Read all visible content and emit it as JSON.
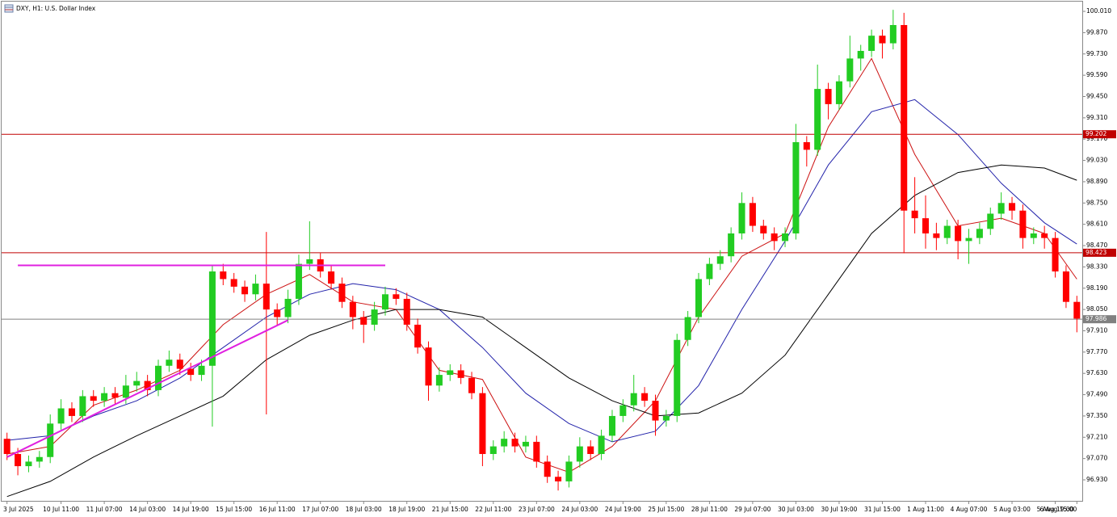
{
  "chart_data": {
    "type": "candlestick",
    "title": "DXY, H1:  U.S. Dollar Index",
    "categories": [
      "3 Jul 2025",
      null,
      null,
      null,
      null,
      "10 Jul 11:00",
      null,
      null,
      null,
      "11 Jul 07:00",
      null,
      null,
      null,
      "14 Jul 03:00",
      null,
      null,
      null,
      "14 Jul 19:00",
      null,
      null,
      null,
      "15 Jul 15:00",
      null,
      null,
      null,
      "16 Jul 11:00",
      null,
      null,
      null,
      "17 Jul 07:00",
      null,
      null,
      null,
      "18 Jul 03:00",
      null,
      null,
      null,
      "18 Jul 19:00",
      null,
      null,
      null,
      "21 Jul 15:00",
      null,
      null,
      null,
      "22 Jul 11:00",
      null,
      null,
      null,
      "23 Jul 07:00",
      null,
      null,
      null,
      "24 Jul 03:00",
      null,
      null,
      null,
      "24 Jul 19:00",
      null,
      null,
      null,
      "25 Jul 15:00",
      null,
      null,
      null,
      "28 Jul 11:00",
      null,
      null,
      null,
      "29 Jul 07:00",
      null,
      null,
      null,
      "30 Jul 03:00",
      null,
      null,
      null,
      "30 Jul 19:00",
      null,
      null,
      null,
      "31 Jul 15:00",
      null,
      null,
      null,
      "1 Aug 11:00",
      null,
      null,
      null,
      "4 Aug 07:00",
      null,
      null,
      null,
      "5 Aug 03:00",
      null,
      null,
      null,
      "5 Aug 19:00",
      null,
      "6 Aug 15:00"
    ],
    "open": [
      97.2,
      97.1,
      97.02,
      97.05,
      97.08,
      97.3,
      97.4,
      97.35,
      97.48,
      97.45,
      97.5,
      97.47,
      97.55,
      97.58,
      97.52,
      97.68,
      97.72,
      97.66,
      97.62,
      97.68,
      98.3,
      98.25,
      98.2,
      98.15,
      98.22,
      98.05,
      98.0,
      98.12,
      98.35,
      98.38,
      98.3,
      98.22,
      98.1,
      98.0,
      97.95,
      98.05,
      98.15,
      98.12,
      97.95,
      97.8,
      97.55,
      97.62,
      97.65,
      97.6,
      97.5,
      97.1,
      97.15,
      97.2,
      97.15,
      97.18,
      97.05,
      96.95,
      96.92,
      97.05,
      97.15,
      97.1,
      97.22,
      97.35,
      97.42,
      97.5,
      97.45,
      97.32,
      97.35,
      97.85,
      98.0,
      98.25,
      98.35,
      98.4,
      98.55,
      98.75,
      98.6,
      98.55,
      98.5,
      98.55,
      99.15,
      99.1,
      99.5,
      99.4,
      99.55,
      99.7,
      99.75,
      99.85,
      99.8,
      99.92,
      98.7,
      98.65,
      98.55,
      98.52,
      98.6,
      98.5,
      98.52,
      98.58,
      98.68,
      98.75,
      98.7,
      98.52,
      98.55,
      98.52,
      98.3,
      98.1
    ],
    "high": [
      97.24,
      97.14,
      97.09,
      97.12,
      97.36,
      97.46,
      97.44,
      97.52,
      97.52,
      97.54,
      97.54,
      97.62,
      97.64,
      97.62,
      97.72,
      97.78,
      97.76,
      97.7,
      97.72,
      98.34,
      98.35,
      98.29,
      98.24,
      98.28,
      98.56,
      98.09,
      98.18,
      98.41,
      98.63,
      98.42,
      98.34,
      98.26,
      98.14,
      98.04,
      98.1,
      98.2,
      98.19,
      98.16,
      97.99,
      97.84,
      97.67,
      97.69,
      97.69,
      97.64,
      97.54,
      97.19,
      97.25,
      97.24,
      97.22,
      97.22,
      97.09,
      96.99,
      97.09,
      97.21,
      97.19,
      97.26,
      97.39,
      97.46,
      97.62,
      97.54,
      97.49,
      97.39,
      97.89,
      98.04,
      98.29,
      98.39,
      98.44,
      98.59,
      98.82,
      98.79,
      98.64,
      98.59,
      98.59,
      99.27,
      99.19,
      99.66,
      99.54,
      99.59,
      99.85,
      99.79,
      99.89,
      99.89,
      100.02,
      100.0,
      98.92,
      98.8,
      98.62,
      98.64,
      98.64,
      98.58,
      98.62,
      98.72,
      98.82,
      98.79,
      98.74,
      98.59,
      98.6,
      98.56,
      98.34,
      98.14
    ],
    "low": [
      97.06,
      96.96,
      96.98,
      97.01,
      97.04,
      97.26,
      97.31,
      97.31,
      97.41,
      97.41,
      97.43,
      97.43,
      97.51,
      97.48,
      97.48,
      97.64,
      97.62,
      97.58,
      97.58,
      97.28,
      98.21,
      98.16,
      98.1,
      98.11,
      97.36,
      97.95,
      97.96,
      98.08,
      98.31,
      98.26,
      98.18,
      98.06,
      97.92,
      97.83,
      97.91,
      98.01,
      98.08,
      97.91,
      97.76,
      97.45,
      97.51,
      97.58,
      97.56,
      97.46,
      97.02,
      97.06,
      97.11,
      97.11,
      97.11,
      97.01,
      96.91,
      96.86,
      96.88,
      97.01,
      97.06,
      97.06,
      97.18,
      97.31,
      97.38,
      97.41,
      97.22,
      97.28,
      97.31,
      97.81,
      97.96,
      98.21,
      98.31,
      98.36,
      98.51,
      98.56,
      98.51,
      98.44,
      98.46,
      98.51,
      98.99,
      99.06,
      99.3,
      99.36,
      99.51,
      99.62,
      99.71,
      99.7,
      99.76,
      98.42,
      98.55,
      98.45,
      98.44,
      98.48,
      98.38,
      98.35,
      98.48,
      98.54,
      98.64,
      98.64,
      98.45,
      98.48,
      98.45,
      98.26,
      98.06,
      97.9
    ],
    "close": [
      97.1,
      97.02,
      97.05,
      97.08,
      97.3,
      97.4,
      97.35,
      97.48,
      97.45,
      97.5,
      97.47,
      97.55,
      97.58,
      97.52,
      97.68,
      97.72,
      97.66,
      97.62,
      97.68,
      98.3,
      98.25,
      98.2,
      98.15,
      98.22,
      98.05,
      98.0,
      98.12,
      98.35,
      98.38,
      98.3,
      98.22,
      98.1,
      98.0,
      97.95,
      98.05,
      98.15,
      98.12,
      97.95,
      97.8,
      97.55,
      97.62,
      97.65,
      97.6,
      97.5,
      97.1,
      97.15,
      97.2,
      97.15,
      97.18,
      97.05,
      96.95,
      96.92,
      97.05,
      97.15,
      97.1,
      97.22,
      97.35,
      97.42,
      97.5,
      97.45,
      97.32,
      97.35,
      97.85,
      98.0,
      98.25,
      98.35,
      98.4,
      98.55,
      98.75,
      98.6,
      98.55,
      98.5,
      98.55,
      99.15,
      99.1,
      99.5,
      99.4,
      99.55,
      99.7,
      99.75,
      99.85,
      99.8,
      99.92,
      98.7,
      98.65,
      98.55,
      98.52,
      98.6,
      98.5,
      98.52,
      98.58,
      98.68,
      98.75,
      98.7,
      98.52,
      98.55,
      98.52,
      98.3,
      98.1,
      97.99
    ],
    "up_color": "#22cc22",
    "down_color": "#ff0000",
    "moving_averages": [
      {
        "color": "#cc1111",
        "x": [
          0,
          4,
          8,
          12,
          16,
          20,
          24,
          28,
          32,
          36,
          40,
          44,
          48,
          52,
          56,
          60,
          64,
          68,
          72,
          76,
          80,
          84,
          88,
          92,
          96,
          99
        ],
        "values": [
          97.1,
          97.15,
          97.42,
          97.52,
          97.65,
          97.95,
          98.15,
          98.28,
          98.1,
          98.05,
          97.65,
          97.59,
          97.08,
          96.98,
          97.15,
          97.45,
          98.0,
          98.4,
          98.55,
          99.25,
          99.7,
          99.07,
          98.6,
          98.65,
          98.55,
          98.25
        ]
      },
      {
        "color": "#2222aa",
        "x": [
          0,
          4,
          8,
          12,
          16,
          20,
          24,
          28,
          32,
          36,
          40,
          44,
          48,
          52,
          56,
          60,
          64,
          68,
          72,
          76,
          80,
          84,
          88,
          92,
          96,
          99
        ],
        "values": [
          97.19,
          97.22,
          97.35,
          97.45,
          97.6,
          97.8,
          98.0,
          98.15,
          98.22,
          98.18,
          98.05,
          97.8,
          97.5,
          97.3,
          97.18,
          97.25,
          97.55,
          98.05,
          98.5,
          99.0,
          99.35,
          99.43,
          99.2,
          98.88,
          98.62,
          98.48
        ]
      },
      {
        "color": "#000000",
        "x": [
          0,
          4,
          8,
          12,
          16,
          20,
          24,
          28,
          32,
          36,
          40,
          44,
          48,
          52,
          56,
          60,
          64,
          68,
          72,
          76,
          80,
          84,
          88,
          92,
          96,
          99
        ],
        "values": [
          96.82,
          96.92,
          97.08,
          97.22,
          97.35,
          97.48,
          97.72,
          97.88,
          97.98,
          98.05,
          98.05,
          98.0,
          97.8,
          97.6,
          97.45,
          97.35,
          97.37,
          97.5,
          97.75,
          98.15,
          98.55,
          98.8,
          98.95,
          99.0,
          98.98,
          98.9
        ]
      }
    ],
    "trendlines": [
      {
        "color": "#e020e0",
        "x": [
          1,
          35
        ],
        "values": [
          98.34,
          98.34
        ]
      },
      {
        "color": "#e020e0",
        "x": [
          0,
          26
        ],
        "values": [
          97.08,
          97.98
        ]
      }
    ],
    "levels": [
      {
        "value": 99.202,
        "color": "#c00000"
      },
      {
        "value": 98.423,
        "color": "#c00000"
      },
      {
        "value": 97.986,
        "color": "#808080"
      }
    ],
    "ylim": [
      96.792,
      100.074
    ],
    "yticks": [
      {
        "value": 96.93,
        "label": "96.930"
      },
      {
        "value": 97.07,
        "label": "97.070"
      },
      {
        "value": 97.21,
        "label": "97.210"
      },
      {
        "value": 97.35,
        "label": "97.350"
      },
      {
        "value": 97.49,
        "label": "97.490"
      },
      {
        "value": 97.63,
        "label": "97.630"
      },
      {
        "value": 97.77,
        "label": "97.770"
      },
      {
        "value": 97.91,
        "label": "97.910"
      },
      {
        "value": 98.05,
        "label": "98.050"
      },
      {
        "value": 98.19,
        "label": "98.190"
      },
      {
        "value": 98.33,
        "label": "98.330"
      },
      {
        "value": 98.47,
        "label": "98.470"
      },
      {
        "value": 98.61,
        "label": "98.610"
      },
      {
        "value": 98.75,
        "label": "98.750"
      },
      {
        "value": 98.89,
        "label": "98.890"
      },
      {
        "value": 99.03,
        "label": "99.030"
      },
      {
        "value": 99.17,
        "label": "99.170"
      },
      {
        "value": 99.31,
        "label": "99.310"
      },
      {
        "value": 99.45,
        "label": "99.450"
      },
      {
        "value": 99.59,
        "label": "99.590"
      },
      {
        "value": 99.73,
        "label": "99.730"
      },
      {
        "value": 99.87,
        "label": "99.870"
      },
      {
        "value": 100.01,
        "label": "100.010"
      }
    ],
    "grid": false
  }
}
